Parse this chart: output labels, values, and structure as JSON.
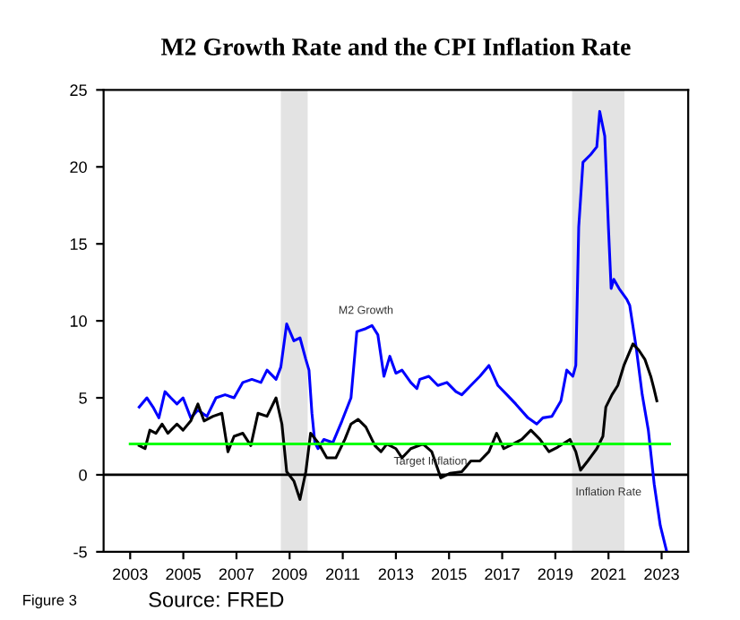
{
  "chart_data": {
    "type": "line",
    "title": "M2 Growth Rate and the CPI Inflation Rate",
    "xlim": [
      2002,
      2024
    ],
    "xticks": [
      2003,
      2005,
      2007,
      2009,
      2011,
      2013,
      2015,
      2017,
      2019,
      2021,
      2023
    ],
    "ylim": [
      -5,
      25
    ],
    "yticks": [
      -5,
      0,
      5,
      10,
      15,
      20,
      25
    ],
    "grid": false,
    "legend": false,
    "series": [
      {
        "color": "#0000ff",
        "x": [
          2003.34,
          2003.63,
          2003.86,
          2004.08,
          2004.31,
          2004.53,
          2004.76,
          2004.99,
          2005.28,
          2005.55,
          2005.89,
          2006.23,
          2006.57,
          2006.91,
          2007.24,
          2007.58,
          2007.92,
          2008.15,
          2008.49,
          2008.67,
          2008.89,
          2009.16,
          2009.39,
          2009.61,
          2009.73,
          2009.84,
          2009.95,
          2010.07,
          2010.29,
          2010.63,
          2010.97,
          2011.31,
          2011.53,
          2011.87,
          2012.1,
          2012.32,
          2012.55,
          2012.77,
          2013.0,
          2013.23,
          2013.56,
          2013.79,
          2013.9,
          2014.24,
          2014.58,
          2014.92,
          2015.26,
          2015.48,
          2015.82,
          2016.16,
          2016.5,
          2016.84,
          2017.18,
          2017.51,
          2017.97,
          2018.3,
          2018.53,
          2018.87,
          2019.21,
          2019.43,
          2019.66,
          2019.77,
          2019.88,
          2020.04,
          2020.33,
          2020.56,
          2020.67,
          2020.86,
          2021.0,
          2021.1,
          2021.2,
          2021.4,
          2021.69,
          2021.8,
          2022.04,
          2022.27,
          2022.5,
          2022.72,
          2022.95,
          2023.18
        ],
        "values": [
          4.4,
          5.0,
          4.4,
          3.7,
          5.4,
          5.0,
          4.6,
          5.0,
          3.7,
          4.2,
          3.8,
          5.0,
          5.2,
          5.0,
          6.0,
          6.2,
          6.0,
          6.8,
          6.2,
          7.0,
          9.8,
          8.7,
          8.9,
          7.5,
          6.8,
          4.0,
          2.1,
          1.7,
          2.3,
          2.1,
          3.5,
          5.0,
          9.3,
          9.5,
          9.7,
          9.1,
          6.4,
          7.7,
          6.6,
          6.8,
          6.0,
          5.6,
          6.2,
          6.4,
          5.8,
          6.0,
          5.4,
          5.2,
          5.8,
          6.4,
          7.1,
          5.8,
          5.2,
          4.6,
          3.7,
          3.3,
          3.7,
          3.8,
          4.8,
          6.8,
          6.4,
          7.1,
          16.1,
          20.3,
          20.8,
          21.3,
          23.6,
          22.0,
          16.0,
          12.1,
          12.7,
          12.1,
          11.4,
          11.0,
          8.3,
          5.2,
          2.9,
          -0.6,
          -3.3,
          -4.9
        ]
      },
      {
        "color": "#000000",
        "x": [
          2003.34,
          2003.56,
          2003.74,
          2003.97,
          2004.2,
          2004.42,
          2004.76,
          2004.99,
          2005.28,
          2005.55,
          2005.78,
          2006.12,
          2006.45,
          2006.68,
          2006.91,
          2007.24,
          2007.54,
          2007.81,
          2008.15,
          2008.49,
          2008.71,
          2008.89,
          2009.16,
          2009.39,
          2009.61,
          2009.79,
          2010.07,
          2010.4,
          2010.74,
          2011.08,
          2011.31,
          2011.58,
          2011.87,
          2012.21,
          2012.44,
          2012.66,
          2013.0,
          2013.23,
          2013.56,
          2014.02,
          2014.35,
          2014.69,
          2015.03,
          2015.48,
          2015.82,
          2016.16,
          2016.5,
          2016.79,
          2017.06,
          2017.4,
          2017.74,
          2018.08,
          2018.42,
          2018.76,
          2019.09,
          2019.55,
          2019.77,
          2019.95,
          2020.22,
          2020.56,
          2020.79,
          2020.9,
          2021.13,
          2021.35,
          2021.58,
          2021.92,
          2022.14,
          2022.37,
          2022.59,
          2022.71,
          2022.82
        ],
        "values": [
          1.9,
          1.7,
          2.9,
          2.7,
          3.3,
          2.7,
          3.3,
          2.9,
          3.5,
          4.6,
          3.5,
          3.8,
          4.0,
          1.5,
          2.5,
          2.7,
          1.9,
          4.0,
          3.8,
          5.0,
          3.3,
          0.2,
          -0.4,
          -1.6,
          0.2,
          2.7,
          2.1,
          1.1,
          1.1,
          2.3,
          3.3,
          3.6,
          3.1,
          1.9,
          1.5,
          2.0,
          1.7,
          1.1,
          1.7,
          2.0,
          1.5,
          -0.2,
          0.1,
          0.2,
          0.9,
          0.9,
          1.5,
          2.7,
          1.7,
          2.0,
          2.3,
          2.9,
          2.3,
          1.5,
          1.8,
          2.3,
          1.5,
          0.3,
          0.9,
          1.7,
          2.5,
          4.4,
          5.2,
          5.8,
          7.1,
          8.5,
          8.1,
          7.5,
          6.4,
          5.6,
          4.8
        ]
      },
      {
        "color": "#00ff00",
        "x": [
          2003,
          2023.3
        ],
        "values": [
          2,
          2
        ]
      }
    ],
    "ref_lines": [
      {
        "axis": "y",
        "value": 0,
        "color": "#000000"
      }
    ],
    "bands": [
      {
        "axis": "x",
        "from": 2008.67,
        "to": 2009.68,
        "color": "#e3e3e3"
      },
      {
        "axis": "x",
        "from": 2019.63,
        "to": 2021.6,
        "color": "#e3e3e3"
      }
    ],
    "annotations": [
      {
        "text": "M2 Growth",
        "x": 2011.87,
        "y": 9.5
      },
      {
        "text": "Target Inflation",
        "x": 2014.3,
        "y": 2
      },
      {
        "text": "Inflation Rate",
        "x": 2021.0,
        "y": 0
      },
      "Figure 3",
      "Source: FRED"
    ]
  }
}
